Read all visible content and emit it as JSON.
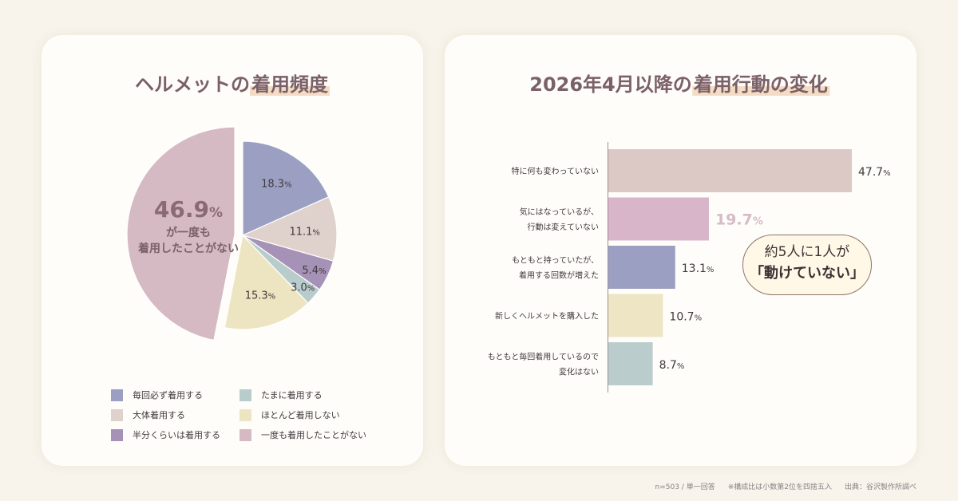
{
  "left": {
    "title_plain": "ヘルメットの",
    "title_highlight": "着用頻度",
    "pie_center_value": "46.9",
    "pie_center_unit": "%",
    "pie_center_line2": "が一度も",
    "pie_center_line3": "着用したことがない"
  },
  "right": {
    "title_plain": "2026年4月以降の",
    "title_highlight": "着用行動の変化",
    "callout_line1": "約5人に1人が",
    "callout_line2": "「動けていない」"
  },
  "footer": {
    "sample": "n=503 / 単一回答",
    "note": "※構成比は小数第2位を四捨五入",
    "source": "出典：谷沢製作所調べ"
  },
  "chart_data": [
    {
      "type": "pie",
      "title": "ヘルメットの着用頻度",
      "slices": [
        {
          "label": "毎回必ず着用する",
          "value": 18.3,
          "color": "#9ba0c2",
          "label_text": "18.3",
          "unit": "%"
        },
        {
          "label": "大体着用する",
          "value": 11.1,
          "color": "#dfd1cb",
          "label_text": "11.1",
          "unit": "%"
        },
        {
          "label": "半分くらいは着用する",
          "value": 5.4,
          "color": "#a692b6",
          "label_text": "5.4",
          "unit": "%"
        },
        {
          "label": "たまに着用する",
          "value": 3.0,
          "color": "#b9cccc",
          "label_text": "3.0",
          "unit": "%"
        },
        {
          "label": "ほとんど着用しない",
          "value": 15.3,
          "color": "#ede5c1",
          "label_text": "15.3",
          "unit": "%"
        },
        {
          "label": "一度も着用したことがない",
          "value": 46.9,
          "color": "#d5bac4",
          "label_text": "",
          "unit": "",
          "exploded": true
        }
      ],
      "legend_order": [
        0,
        3,
        1,
        4,
        2,
        5
      ],
      "legend_placement": "bottom"
    },
    {
      "type": "bar",
      "orientation": "horizontal",
      "title": "2026年4月以降の着用行動の変化",
      "xlim": [
        0,
        50
      ],
      "bars": [
        {
          "label_lines": [
            "特に何も変わっていない"
          ],
          "value": 47.7,
          "value_text": "47.7",
          "unit": "%",
          "color": "#dcc8c4"
        },
        {
          "label_lines": [
            "気にはなっているが、",
            "行動は変えていない"
          ],
          "value": 19.7,
          "value_text": "19.7",
          "unit": "%",
          "color": "#d9b5c9",
          "highlight": true,
          "value_color": "#d5bcc6"
        },
        {
          "label_lines": [
            "もともと持っていたが、",
            "着用する回数が増えた"
          ],
          "value": 13.1,
          "value_text": "13.1",
          "unit": "%",
          "color": "#9ba0c2"
        },
        {
          "label_lines": [
            "新しくヘルメットを購入した"
          ],
          "value": 10.7,
          "value_text": "10.7",
          "unit": "%",
          "color": "#eee5c5"
        },
        {
          "label_lines": [
            "もともと毎回着用しているので",
            "変化はない"
          ],
          "value": 8.7,
          "value_text": "8.7",
          "unit": "%",
          "color": "#bacccc"
        }
      ]
    }
  ]
}
